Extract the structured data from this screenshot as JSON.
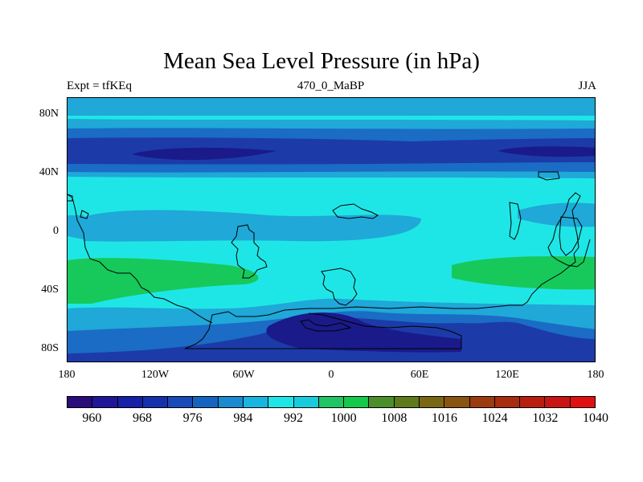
{
  "title": "Mean Sea Level Pressure (in hPa)",
  "subtitle_left": "Expt = tfKEq",
  "subtitle_center": "470_0_MaBP",
  "subtitle_right": "JJA",
  "y_ticks": [
    "80N",
    "40N",
    "0",
    "40S",
    "80S"
  ],
  "x_ticks": [
    "180",
    "120W",
    "60W",
    "0",
    "60E",
    "120E",
    "180"
  ],
  "colorbar": {
    "colors": [
      "#2a0d7a",
      "#1f1699",
      "#1621a6",
      "#1530ad",
      "#1a4ab8",
      "#1565c0",
      "#1b8ad0",
      "#17b5df",
      "#1fe6e6",
      "#18ccdd",
      "#20c463",
      "#15c94a",
      "#4a8f2a",
      "#5e7a1c",
      "#7a6714",
      "#8a5412",
      "#9a3c10",
      "#a82c10",
      "#b81e10",
      "#c81414",
      "#e01010"
    ],
    "labels": [
      "960",
      "968",
      "976",
      "984",
      "992",
      "1000",
      "1008",
      "1016",
      "1024",
      "1032",
      "1040"
    ]
  },
  "map_colors": {
    "darkest": "#1a1a8a",
    "dark": "#1c3ba8",
    "mid": "#1a6cc4",
    "light": "#1fa8d8",
    "cyan": "#1fe6e6",
    "green": "#17c95a"
  }
}
